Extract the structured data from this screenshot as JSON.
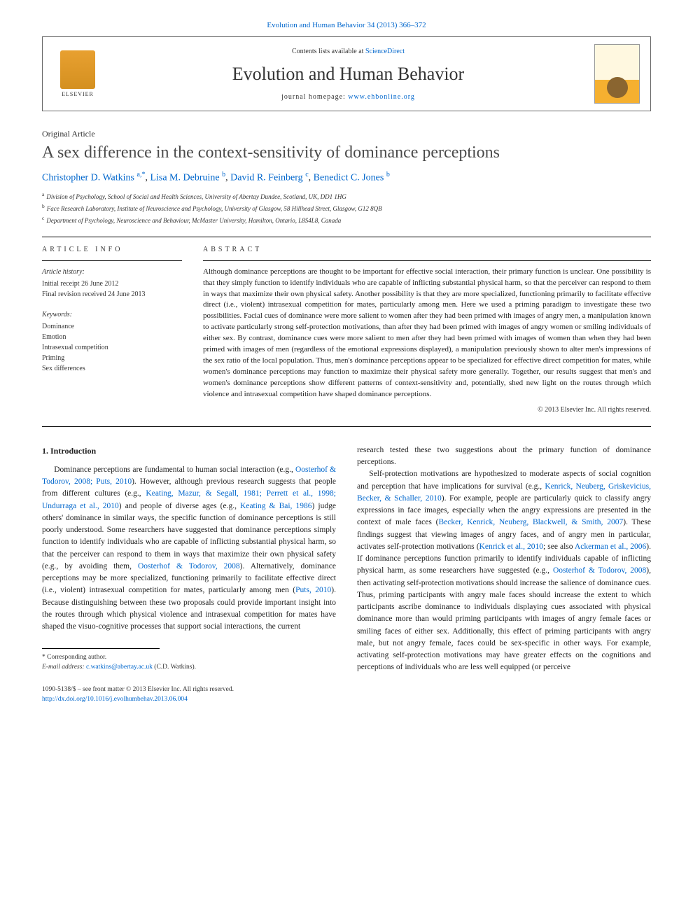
{
  "top_link": "Evolution and Human Behavior 34 (2013) 366–372",
  "header": {
    "contents_prefix": "Contents lists available at ",
    "contents_link": "ScienceDirect",
    "journal_name": "Evolution and Human Behavior",
    "homepage_prefix": "journal homepage: ",
    "homepage_link": "www.ehbonline.org",
    "elsevier_label": "ELSEVIER"
  },
  "article_type": "Original Article",
  "title": "A sex difference in the context-sensitivity of dominance perceptions",
  "authors": {
    "a1_name": "Christopher D. Watkins ",
    "a1_aff": "a,",
    "a1_star": "*",
    "sep1": ", ",
    "a2_name": "Lisa M. Debruine ",
    "a2_aff": "b",
    "sep2": ", ",
    "a3_name": "David R. Feinberg ",
    "a3_aff": "c",
    "sep3": ", ",
    "a4_name": "Benedict C. Jones ",
    "a4_aff": "b"
  },
  "affiliations": {
    "a": "Division of Psychology, School of Social and Health Sciences, University of Abertay Dundee, Scotland, UK, DD1 1HG",
    "b": "Face Research Laboratory, Institute of Neuroscience and Psychology, University of Glasgow, 58 Hillhead Street, Glasgow, G12 8QB",
    "c": "Department of Psychology, Neuroscience and Behaviour, McMaster University, Hamilton, Ontario, L8S4L8, Canada"
  },
  "info": {
    "label": "ARTICLE INFO",
    "history_label": "Article history:",
    "history_1": "Initial receipt 26 June 2012",
    "history_2": "Final revision received 24 June 2013",
    "keywords_label": "Keywords:",
    "kw1": "Dominance",
    "kw2": "Emotion",
    "kw3": "Intrasexual competition",
    "kw4": "Priming",
    "kw5": "Sex differences"
  },
  "abstract": {
    "label": "ABSTRACT",
    "text": "Although dominance perceptions are thought to be important for effective social interaction, their primary function is unclear. One possibility is that they simply function to identify individuals who are capable of inflicting substantial physical harm, so that the perceiver can respond to them in ways that maximize their own physical safety. Another possibility is that they are more specialized, functioning primarily to facilitate effective direct (i.e., violent) intrasexual competition for mates, particularly among men. Here we used a priming paradigm to investigate these two possibilities. Facial cues of dominance were more salient to women after they had been primed with images of angry men, a manipulation known to activate particularly strong self-protection motivations, than after they had been primed with images of angry women or smiling individuals of either sex. By contrast, dominance cues were more salient to men after they had been primed with images of women than when they had been primed with images of men (regardless of the emotional expressions displayed), a manipulation previously shown to alter men's impressions of the sex ratio of the local population. Thus, men's dominance perceptions appear to be specialized for effective direct competition for mates, while women's dominance perceptions may function to maximize their physical safety more generally. Together, our results suggest that men's and women's dominance perceptions show different patterns of context-sensitivity and, potentially, shed new light on the routes through which violence and intrasexual competition have shaped dominance perceptions.",
    "copyright": "© 2013 Elsevier Inc. All rights reserved."
  },
  "body": {
    "heading": "1. Introduction",
    "col1_p1a": "Dominance perceptions are fundamental to human social interaction (e.g., ",
    "col1_r1": "Oosterhof & Todorov, 2008; Puts, 2010",
    "col1_p1b": "). However, although previous research suggests that people from different cultures (e.g., ",
    "col1_r2": "Keating, Mazur, & Segall, 1981; Perrett et al., 1998; Undurraga et al., 2010",
    "col1_p1c": ") and people of diverse ages (e.g., ",
    "col1_r3": "Keating & Bai, 1986",
    "col1_p1d": ") judge others' dominance in similar ways, the specific function of dominance perceptions is still poorly understood. Some researchers have suggested that dominance perceptions simply function to identify individuals who are capable of inflicting substantial physical harm, so that the perceiver can respond to them in ways that maximize their own physical safety (e.g., by avoiding them, ",
    "col1_r4": "Oosterhof & Todorov, 2008",
    "col1_p1e": "). Alternatively, dominance perceptions may be more specialized, functioning primarily to facilitate effective direct (i.e., violent) intrasexual competition for mates, particularly among men (",
    "col1_r5": "Puts, 2010",
    "col1_p1f": "). Because distinguishing between these two proposals could provide important insight into the routes through which physical violence and intrasexual competition for mates have shaped the visuo-cognitive processes that support social interactions, the current",
    "col2_p1": "research tested these two suggestions about the primary function of dominance perceptions.",
    "col2_p2a": "Self-protection motivations are hypothesized to moderate aspects of social cognition and perception that have implications for survival (e.g., ",
    "col2_r1": "Kenrick, Neuberg, Griskevicius, Becker, & Schaller, 2010",
    "col2_p2b": "). For example, people are particularly quick to classify angry expressions in face images, especially when the angry expressions are presented in the context of male faces (",
    "col2_r2": "Becker, Kenrick, Neuberg, Blackwell, & Smith, 2007",
    "col2_p2c": "). These findings suggest that viewing images of angry faces, and of angry men in particular, activates self-protection motivations (",
    "col2_r3": "Kenrick et al., 2010",
    "col2_p2d": "; see also ",
    "col2_r4": "Ackerman et al., 2006",
    "col2_p2e": "). If dominance perceptions function primarily to identify individuals capable of inflicting physical harm, as some researchers have suggested (e.g., ",
    "col2_r5": "Oosterhof & Todorov, 2008",
    "col2_p2f": "), then activating self-protection motivations should increase the salience of dominance cues. Thus, priming participants with angry male faces should increase the extent to which participants ascribe dominance to individuals displaying cues associated with physical dominance more than would priming participants with images of angry female faces or smiling faces of either sex. Additionally, this effect of priming participants with angry male, but not angry female, faces could be sex-specific in other ways. For example, activating self-protection motivations may have greater effects on the cognitions and perceptions of individuals who are less well equipped (or perceive"
  },
  "footnote": {
    "corr_label": "* Corresponding author.",
    "email_label": "E-mail address: ",
    "email_link": "c.watkins@abertay.ac.uk",
    "email_suffix": " (C.D. Watkins)."
  },
  "footer": {
    "line1": "1090-5138/$ – see front matter © 2013 Elsevier Inc. All rights reserved.",
    "doi": "http://dx.doi.org/10.1016/j.evolhumbehav.2013.06.004"
  }
}
